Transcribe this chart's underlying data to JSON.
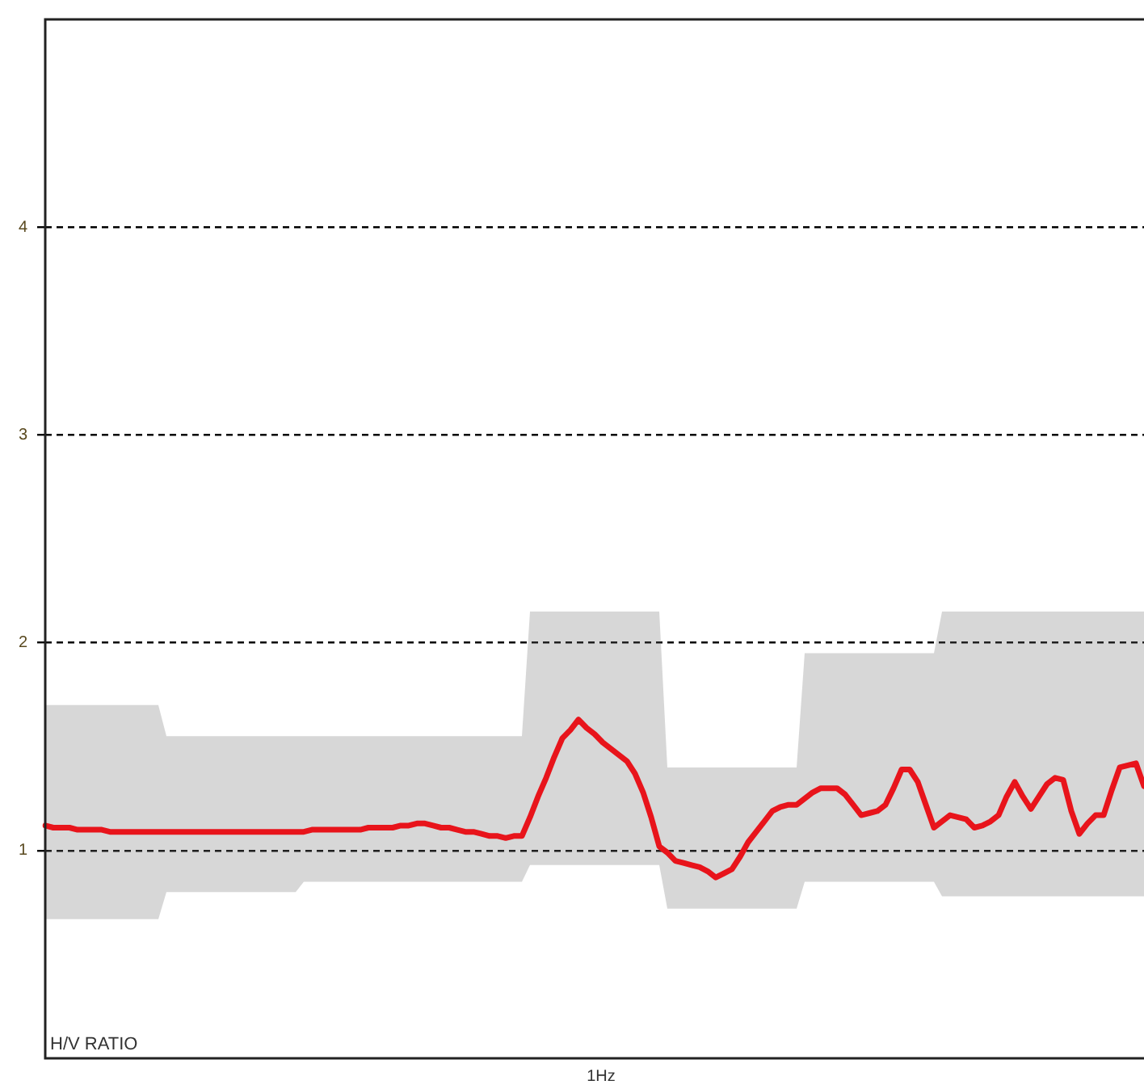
{
  "chart_data": {
    "type": "line",
    "ylabel": "H/V RATIO",
    "grid": "y",
    "legend": false,
    "tick_labels": "y",
    "ylim": [
      0,
      5
    ],
    "yticks": [
      1,
      2,
      3,
      4
    ],
    "annotations": [
      "1Hz"
    ],
    "categories": [
      null,
      null,
      null,
      null,
      null,
      null,
      null,
      null,
      null,
      null,
      null,
      null,
      null,
      null,
      null,
      null,
      null,
      null,
      null,
      null,
      null,
      null,
      null,
      null,
      null,
      null,
      null,
      null,
      null,
      null,
      null,
      null,
      null,
      null,
      null,
      null,
      null,
      null,
      null,
      null,
      null,
      null,
      null,
      null,
      null,
      null,
      null,
      null,
      null,
      null,
      null,
      null,
      null,
      null,
      null,
      null,
      null,
      null,
      null,
      null,
      null,
      null,
      null,
      null,
      null,
      null,
      null,
      null,
      null,
      null,
      null,
      null,
      null,
      null,
      null,
      null,
      null,
      null,
      null,
      null,
      null,
      null,
      null,
      null,
      null,
      null,
      null,
      null,
      null,
      null,
      null,
      null,
      null,
      null,
      null,
      null,
      null,
      null,
      null,
      null,
      null,
      null,
      null,
      null,
      null,
      null,
      null,
      null,
      null,
      null,
      null,
      null,
      null,
      null,
      null,
      null,
      null,
      null,
      null,
      null,
      null,
      null,
      null,
      null,
      null,
      null,
      null,
      null,
      null,
      null,
      null,
      null,
      null,
      null,
      null,
      null,
      null
    ],
    "series": [
      {
        "color": "#e8141b",
        "values": [
          1.12,
          1.11,
          1.11,
          1.11,
          1.1,
          1.1,
          1.1,
          1.1,
          1.09,
          1.09,
          1.09,
          1.09,
          1.09,
          1.09,
          1.09,
          1.09,
          1.09,
          1.09,
          1.09,
          1.09,
          1.09,
          1.09,
          1.09,
          1.09,
          1.09,
          1.09,
          1.09,
          1.09,
          1.09,
          1.09,
          1.09,
          1.09,
          1.09,
          1.1,
          1.1,
          1.1,
          1.1,
          1.1,
          1.1,
          1.1,
          1.11,
          1.11,
          1.11,
          1.11,
          1.12,
          1.12,
          1.13,
          1.13,
          1.12,
          1.11,
          1.11,
          1.1,
          1.09,
          1.09,
          1.08,
          1.07,
          1.07,
          1.06,
          1.07,
          1.07,
          1.16,
          1.26,
          1.35,
          1.45,
          1.54,
          1.58,
          1.63,
          1.59,
          1.56,
          1.52,
          1.49,
          1.46,
          1.43,
          1.37,
          1.28,
          1.16,
          1.02,
          0.99,
          0.95,
          0.94,
          0.93,
          0.92,
          0.9,
          0.87,
          0.89,
          0.91,
          0.97,
          1.04,
          1.09,
          1.14,
          1.19,
          1.21,
          1.22,
          1.22,
          1.25,
          1.28,
          1.3,
          1.3,
          1.3,
          1.27,
          1.22,
          1.17,
          1.18,
          1.19,
          1.22,
          1.3,
          1.39,
          1.39,
          1.33,
          1.22,
          1.11,
          1.14,
          1.17,
          1.16,
          1.15,
          1.11,
          1.12,
          1.14,
          1.17,
          1.26,
          1.33,
          1.26,
          1.2,
          1.26,
          1.32,
          1.35,
          1.34,
          1.19,
          1.08,
          1.13,
          1.17,
          1.17,
          1.29,
          1.4,
          1.41,
          1.42,
          1.31
        ],
        "upper": [
          1.7,
          1.7,
          1.7,
          1.7,
          1.7,
          1.7,
          1.7,
          1.7,
          1.7,
          1.7,
          1.7,
          1.7,
          1.7,
          1.7,
          1.7,
          1.55,
          1.55,
          1.55,
          1.55,
          1.55,
          1.55,
          1.55,
          1.55,
          1.55,
          1.55,
          1.55,
          1.55,
          1.55,
          1.55,
          1.55,
          1.55,
          1.55,
          1.55,
          1.55,
          1.55,
          1.55,
          1.55,
          1.55,
          1.55,
          1.55,
          1.55,
          1.55,
          1.55,
          1.55,
          1.55,
          1.55,
          1.55,
          1.55,
          1.55,
          1.55,
          1.55,
          1.55,
          1.55,
          1.55,
          1.55,
          1.55,
          1.55,
          1.55,
          1.55,
          1.55,
          2.15,
          2.15,
          2.15,
          2.15,
          2.15,
          2.15,
          2.15,
          2.15,
          2.15,
          2.15,
          2.15,
          2.15,
          2.15,
          2.15,
          2.15,
          2.15,
          2.15,
          1.4,
          1.4,
          1.4,
          1.4,
          1.4,
          1.4,
          1.4,
          1.4,
          1.4,
          1.4,
          1.4,
          1.4,
          1.4,
          1.4,
          1.4,
          1.4,
          1.4,
          1.95,
          1.95,
          1.95,
          1.95,
          1.95,
          1.95,
          1.95,
          1.95,
          1.95,
          1.95,
          1.95,
          1.95,
          1.95,
          1.95,
          1.95,
          1.95,
          1.95,
          2.15,
          2.15,
          2.15,
          2.15,
          2.15,
          2.15,
          2.15,
          2.15,
          2.15,
          2.15,
          2.15,
          2.15,
          2.15,
          2.15,
          2.15,
          2.15,
          2.15,
          2.15,
          2.15,
          2.15,
          2.15,
          2.15,
          2.15,
          2.15,
          2.15,
          2.15
        ],
        "lower": [
          0.67,
          0.67,
          0.67,
          0.67,
          0.67,
          0.67,
          0.67,
          0.67,
          0.67,
          0.67,
          0.67,
          0.67,
          0.67,
          0.67,
          0.67,
          0.8,
          0.8,
          0.8,
          0.8,
          0.8,
          0.8,
          0.8,
          0.8,
          0.8,
          0.8,
          0.8,
          0.8,
          0.8,
          0.8,
          0.8,
          0.8,
          0.8,
          0.85,
          0.85,
          0.85,
          0.85,
          0.85,
          0.85,
          0.85,
          0.85,
          0.85,
          0.85,
          0.85,
          0.85,
          0.85,
          0.85,
          0.85,
          0.85,
          0.85,
          0.85,
          0.85,
          0.85,
          0.85,
          0.85,
          0.85,
          0.85,
          0.85,
          0.85,
          0.85,
          0.85,
          0.93,
          0.93,
          0.93,
          0.93,
          0.93,
          0.93,
          0.93,
          0.93,
          0.93,
          0.93,
          0.93,
          0.93,
          0.93,
          0.93,
          0.93,
          0.93,
          0.93,
          0.72,
          0.72,
          0.72,
          0.72,
          0.72,
          0.72,
          0.72,
          0.72,
          0.72,
          0.72,
          0.72,
          0.72,
          0.72,
          0.72,
          0.72,
          0.72,
          0.72,
          0.85,
          0.85,
          0.85,
          0.85,
          0.85,
          0.85,
          0.85,
          0.85,
          0.85,
          0.85,
          0.85,
          0.85,
          0.85,
          0.85,
          0.85,
          0.85,
          0.85,
          0.78,
          0.78,
          0.78,
          0.78,
          0.78,
          0.78,
          0.78,
          0.78,
          0.78,
          0.78,
          0.78,
          0.78,
          0.78,
          0.78,
          0.78,
          0.78,
          0.78,
          0.78,
          0.78,
          0.78,
          0.78,
          0.78,
          0.78,
          0.78,
          0.78,
          0.78
        ]
      }
    ]
  }
}
